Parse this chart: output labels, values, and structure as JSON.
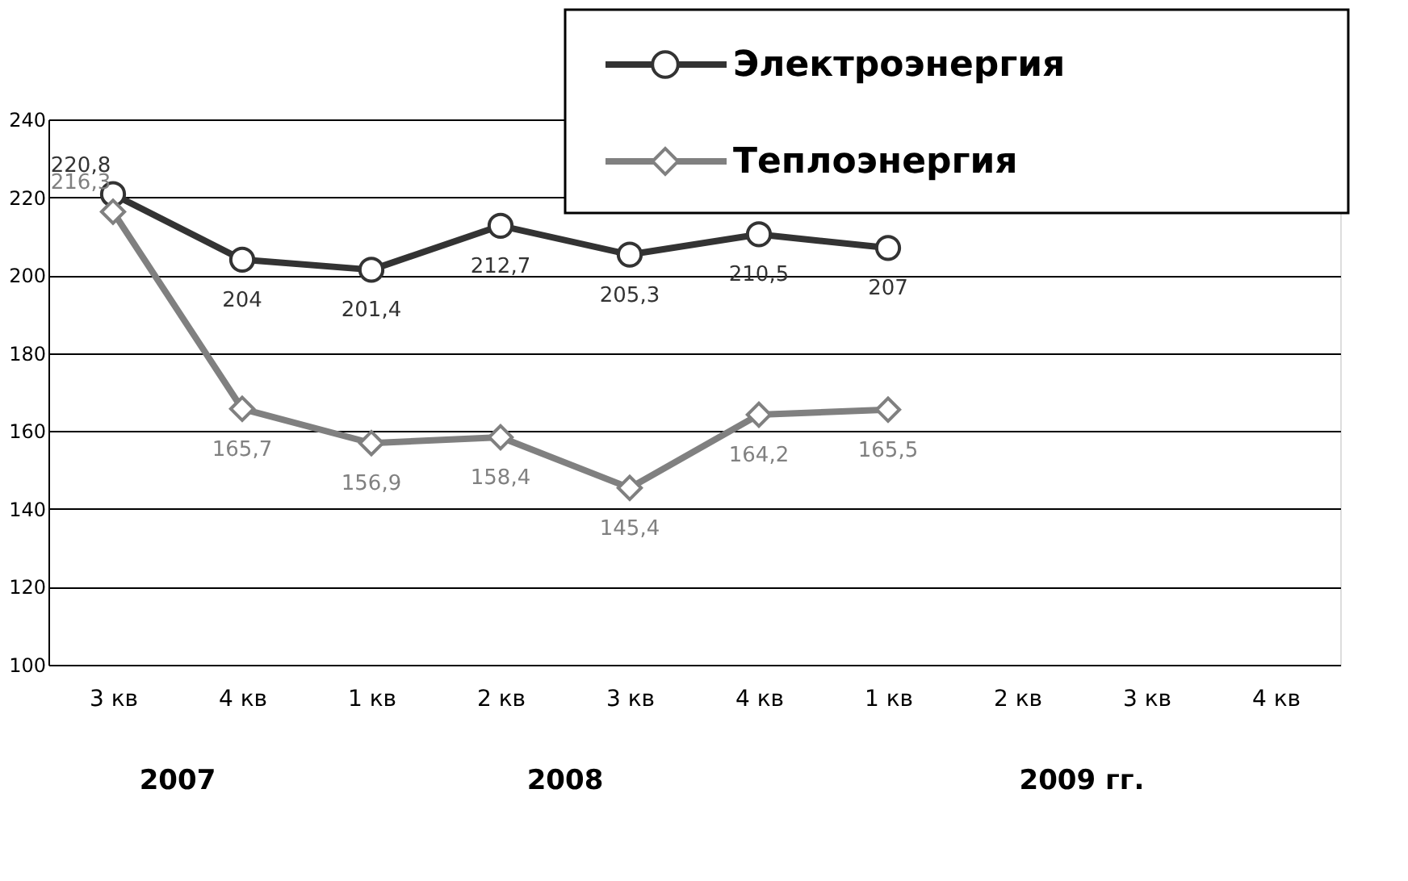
{
  "chart_data": {
    "type": "line",
    "categories": [
      "3 кв",
      "4 кв",
      "1 кв",
      "2 кв",
      "3 кв",
      "4 кв",
      "1 кв",
      "2 кв",
      "3 кв",
      "4 кв"
    ],
    "series": [
      {
        "name": "Электроэнергия",
        "color": "#333333",
        "marker": "circle",
        "values": [
          220.8,
          204,
          201.4,
          212.7,
          205.3,
          210.5,
          207,
          null,
          null,
          null
        ],
        "value_labels": [
          "220,8",
          "204",
          "201,4",
          "212,7",
          "205,3",
          "210,5",
          "207",
          null,
          null,
          null
        ]
      },
      {
        "name": "Теплоэнергия",
        "color": "#808080",
        "marker": "diamond",
        "values": [
          216.3,
          165.7,
          156.9,
          158.4,
          145.4,
          164.2,
          165.5,
          null,
          null,
          null
        ],
        "value_labels": [
          "216,3",
          "165,7",
          "156,9",
          "158,4",
          "145,4",
          "164,2",
          "165,5",
          null,
          null,
          null
        ]
      }
    ],
    "ylim": [
      100,
      240
    ],
    "yticks": [
      100,
      120,
      140,
      160,
      180,
      200,
      220,
      240
    ],
    "grid": "y",
    "legend": "top right",
    "annotations": [
      "2007",
      "2008",
      "2009 гг."
    ]
  }
}
